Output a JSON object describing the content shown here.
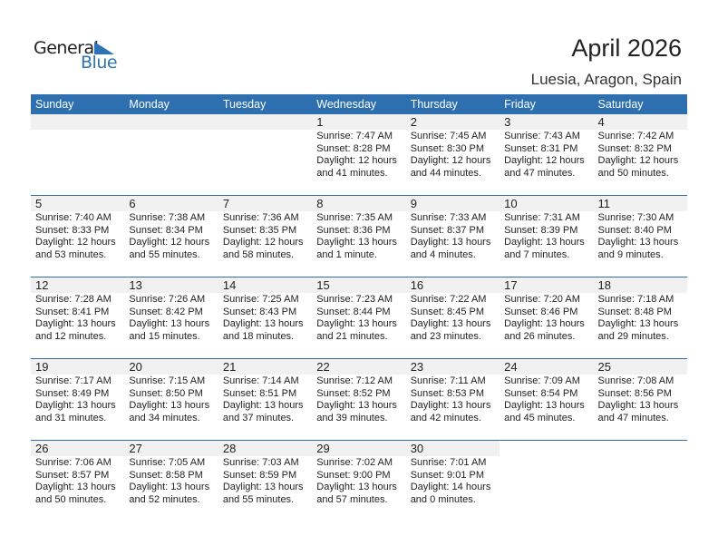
{
  "logo": {
    "general": "General",
    "blue": "Blue"
  },
  "title": "April 2026",
  "location": "Luesia, Aragon, Spain",
  "colors": {
    "accent": "#2e6fb0",
    "strip": "#f1f1f1"
  },
  "weekdays": [
    "Sunday",
    "Monday",
    "Tuesday",
    "Wednesday",
    "Thursday",
    "Friday",
    "Saturday"
  ],
  "first_weekday_index": 3,
  "days": [
    {
      "day": "1",
      "sunrise": "Sunrise: 7:47 AM",
      "sunset": "Sunset: 8:28 PM",
      "daylight": "Daylight: 12 hours",
      "minutes": "and 41 minutes."
    },
    {
      "day": "2",
      "sunrise": "Sunrise: 7:45 AM",
      "sunset": "Sunset: 8:30 PM",
      "daylight": "Daylight: 12 hours",
      "minutes": "and 44 minutes."
    },
    {
      "day": "3",
      "sunrise": "Sunrise: 7:43 AM",
      "sunset": "Sunset: 8:31 PM",
      "daylight": "Daylight: 12 hours",
      "minutes": "and 47 minutes."
    },
    {
      "day": "4",
      "sunrise": "Sunrise: 7:42 AM",
      "sunset": "Sunset: 8:32 PM",
      "daylight": "Daylight: 12 hours",
      "minutes": "and 50 minutes."
    },
    {
      "day": "5",
      "sunrise": "Sunrise: 7:40 AM",
      "sunset": "Sunset: 8:33 PM",
      "daylight": "Daylight: 12 hours",
      "minutes": "and 53 minutes."
    },
    {
      "day": "6",
      "sunrise": "Sunrise: 7:38 AM",
      "sunset": "Sunset: 8:34 PM",
      "daylight": "Daylight: 12 hours",
      "minutes": "and 55 minutes."
    },
    {
      "day": "7",
      "sunrise": "Sunrise: 7:36 AM",
      "sunset": "Sunset: 8:35 PM",
      "daylight": "Daylight: 12 hours",
      "minutes": "and 58 minutes."
    },
    {
      "day": "8",
      "sunrise": "Sunrise: 7:35 AM",
      "sunset": "Sunset: 8:36 PM",
      "daylight": "Daylight: 13 hours",
      "minutes": "and 1 minute."
    },
    {
      "day": "9",
      "sunrise": "Sunrise: 7:33 AM",
      "sunset": "Sunset: 8:37 PM",
      "daylight": "Daylight: 13 hours",
      "minutes": "and 4 minutes."
    },
    {
      "day": "10",
      "sunrise": "Sunrise: 7:31 AM",
      "sunset": "Sunset: 8:39 PM",
      "daylight": "Daylight: 13 hours",
      "minutes": "and 7 minutes."
    },
    {
      "day": "11",
      "sunrise": "Sunrise: 7:30 AM",
      "sunset": "Sunset: 8:40 PM",
      "daylight": "Daylight: 13 hours",
      "minutes": "and 9 minutes."
    },
    {
      "day": "12",
      "sunrise": "Sunrise: 7:28 AM",
      "sunset": "Sunset: 8:41 PM",
      "daylight": "Daylight: 13 hours",
      "minutes": "and 12 minutes."
    },
    {
      "day": "13",
      "sunrise": "Sunrise: 7:26 AM",
      "sunset": "Sunset: 8:42 PM",
      "daylight": "Daylight: 13 hours",
      "minutes": "and 15 minutes."
    },
    {
      "day": "14",
      "sunrise": "Sunrise: 7:25 AM",
      "sunset": "Sunset: 8:43 PM",
      "daylight": "Daylight: 13 hours",
      "minutes": "and 18 minutes."
    },
    {
      "day": "15",
      "sunrise": "Sunrise: 7:23 AM",
      "sunset": "Sunset: 8:44 PM",
      "daylight": "Daylight: 13 hours",
      "minutes": "and 21 minutes."
    },
    {
      "day": "16",
      "sunrise": "Sunrise: 7:22 AM",
      "sunset": "Sunset: 8:45 PM",
      "daylight": "Daylight: 13 hours",
      "minutes": "and 23 minutes."
    },
    {
      "day": "17",
      "sunrise": "Sunrise: 7:20 AM",
      "sunset": "Sunset: 8:46 PM",
      "daylight": "Daylight: 13 hours",
      "minutes": "and 26 minutes."
    },
    {
      "day": "18",
      "sunrise": "Sunrise: 7:18 AM",
      "sunset": "Sunset: 8:48 PM",
      "daylight": "Daylight: 13 hours",
      "minutes": "and 29 minutes."
    },
    {
      "day": "19",
      "sunrise": "Sunrise: 7:17 AM",
      "sunset": "Sunset: 8:49 PM",
      "daylight": "Daylight: 13 hours",
      "minutes": "and 31 minutes."
    },
    {
      "day": "20",
      "sunrise": "Sunrise: 7:15 AM",
      "sunset": "Sunset: 8:50 PM",
      "daylight": "Daylight: 13 hours",
      "minutes": "and 34 minutes."
    },
    {
      "day": "21",
      "sunrise": "Sunrise: 7:14 AM",
      "sunset": "Sunset: 8:51 PM",
      "daylight": "Daylight: 13 hours",
      "minutes": "and 37 minutes."
    },
    {
      "day": "22",
      "sunrise": "Sunrise: 7:12 AM",
      "sunset": "Sunset: 8:52 PM",
      "daylight": "Daylight: 13 hours",
      "minutes": "and 39 minutes."
    },
    {
      "day": "23",
      "sunrise": "Sunrise: 7:11 AM",
      "sunset": "Sunset: 8:53 PM",
      "daylight": "Daylight: 13 hours",
      "minutes": "and 42 minutes."
    },
    {
      "day": "24",
      "sunrise": "Sunrise: 7:09 AM",
      "sunset": "Sunset: 8:54 PM",
      "daylight": "Daylight: 13 hours",
      "minutes": "and 45 minutes."
    },
    {
      "day": "25",
      "sunrise": "Sunrise: 7:08 AM",
      "sunset": "Sunset: 8:56 PM",
      "daylight": "Daylight: 13 hours",
      "minutes": "and 47 minutes."
    },
    {
      "day": "26",
      "sunrise": "Sunrise: 7:06 AM",
      "sunset": "Sunset: 8:57 PM",
      "daylight": "Daylight: 13 hours",
      "minutes": "and 50 minutes."
    },
    {
      "day": "27",
      "sunrise": "Sunrise: 7:05 AM",
      "sunset": "Sunset: 8:58 PM",
      "daylight": "Daylight: 13 hours",
      "minutes": "and 52 minutes."
    },
    {
      "day": "28",
      "sunrise": "Sunrise: 7:03 AM",
      "sunset": "Sunset: 8:59 PM",
      "daylight": "Daylight: 13 hours",
      "minutes": "and 55 minutes."
    },
    {
      "day": "29",
      "sunrise": "Sunrise: 7:02 AM",
      "sunset": "Sunset: 9:00 PM",
      "daylight": "Daylight: 13 hours",
      "minutes": "and 57 minutes."
    },
    {
      "day": "30",
      "sunrise": "Sunrise: 7:01 AM",
      "sunset": "Sunset: 9:01 PM",
      "daylight": "Daylight: 14 hours",
      "minutes": "and 0 minutes."
    }
  ]
}
